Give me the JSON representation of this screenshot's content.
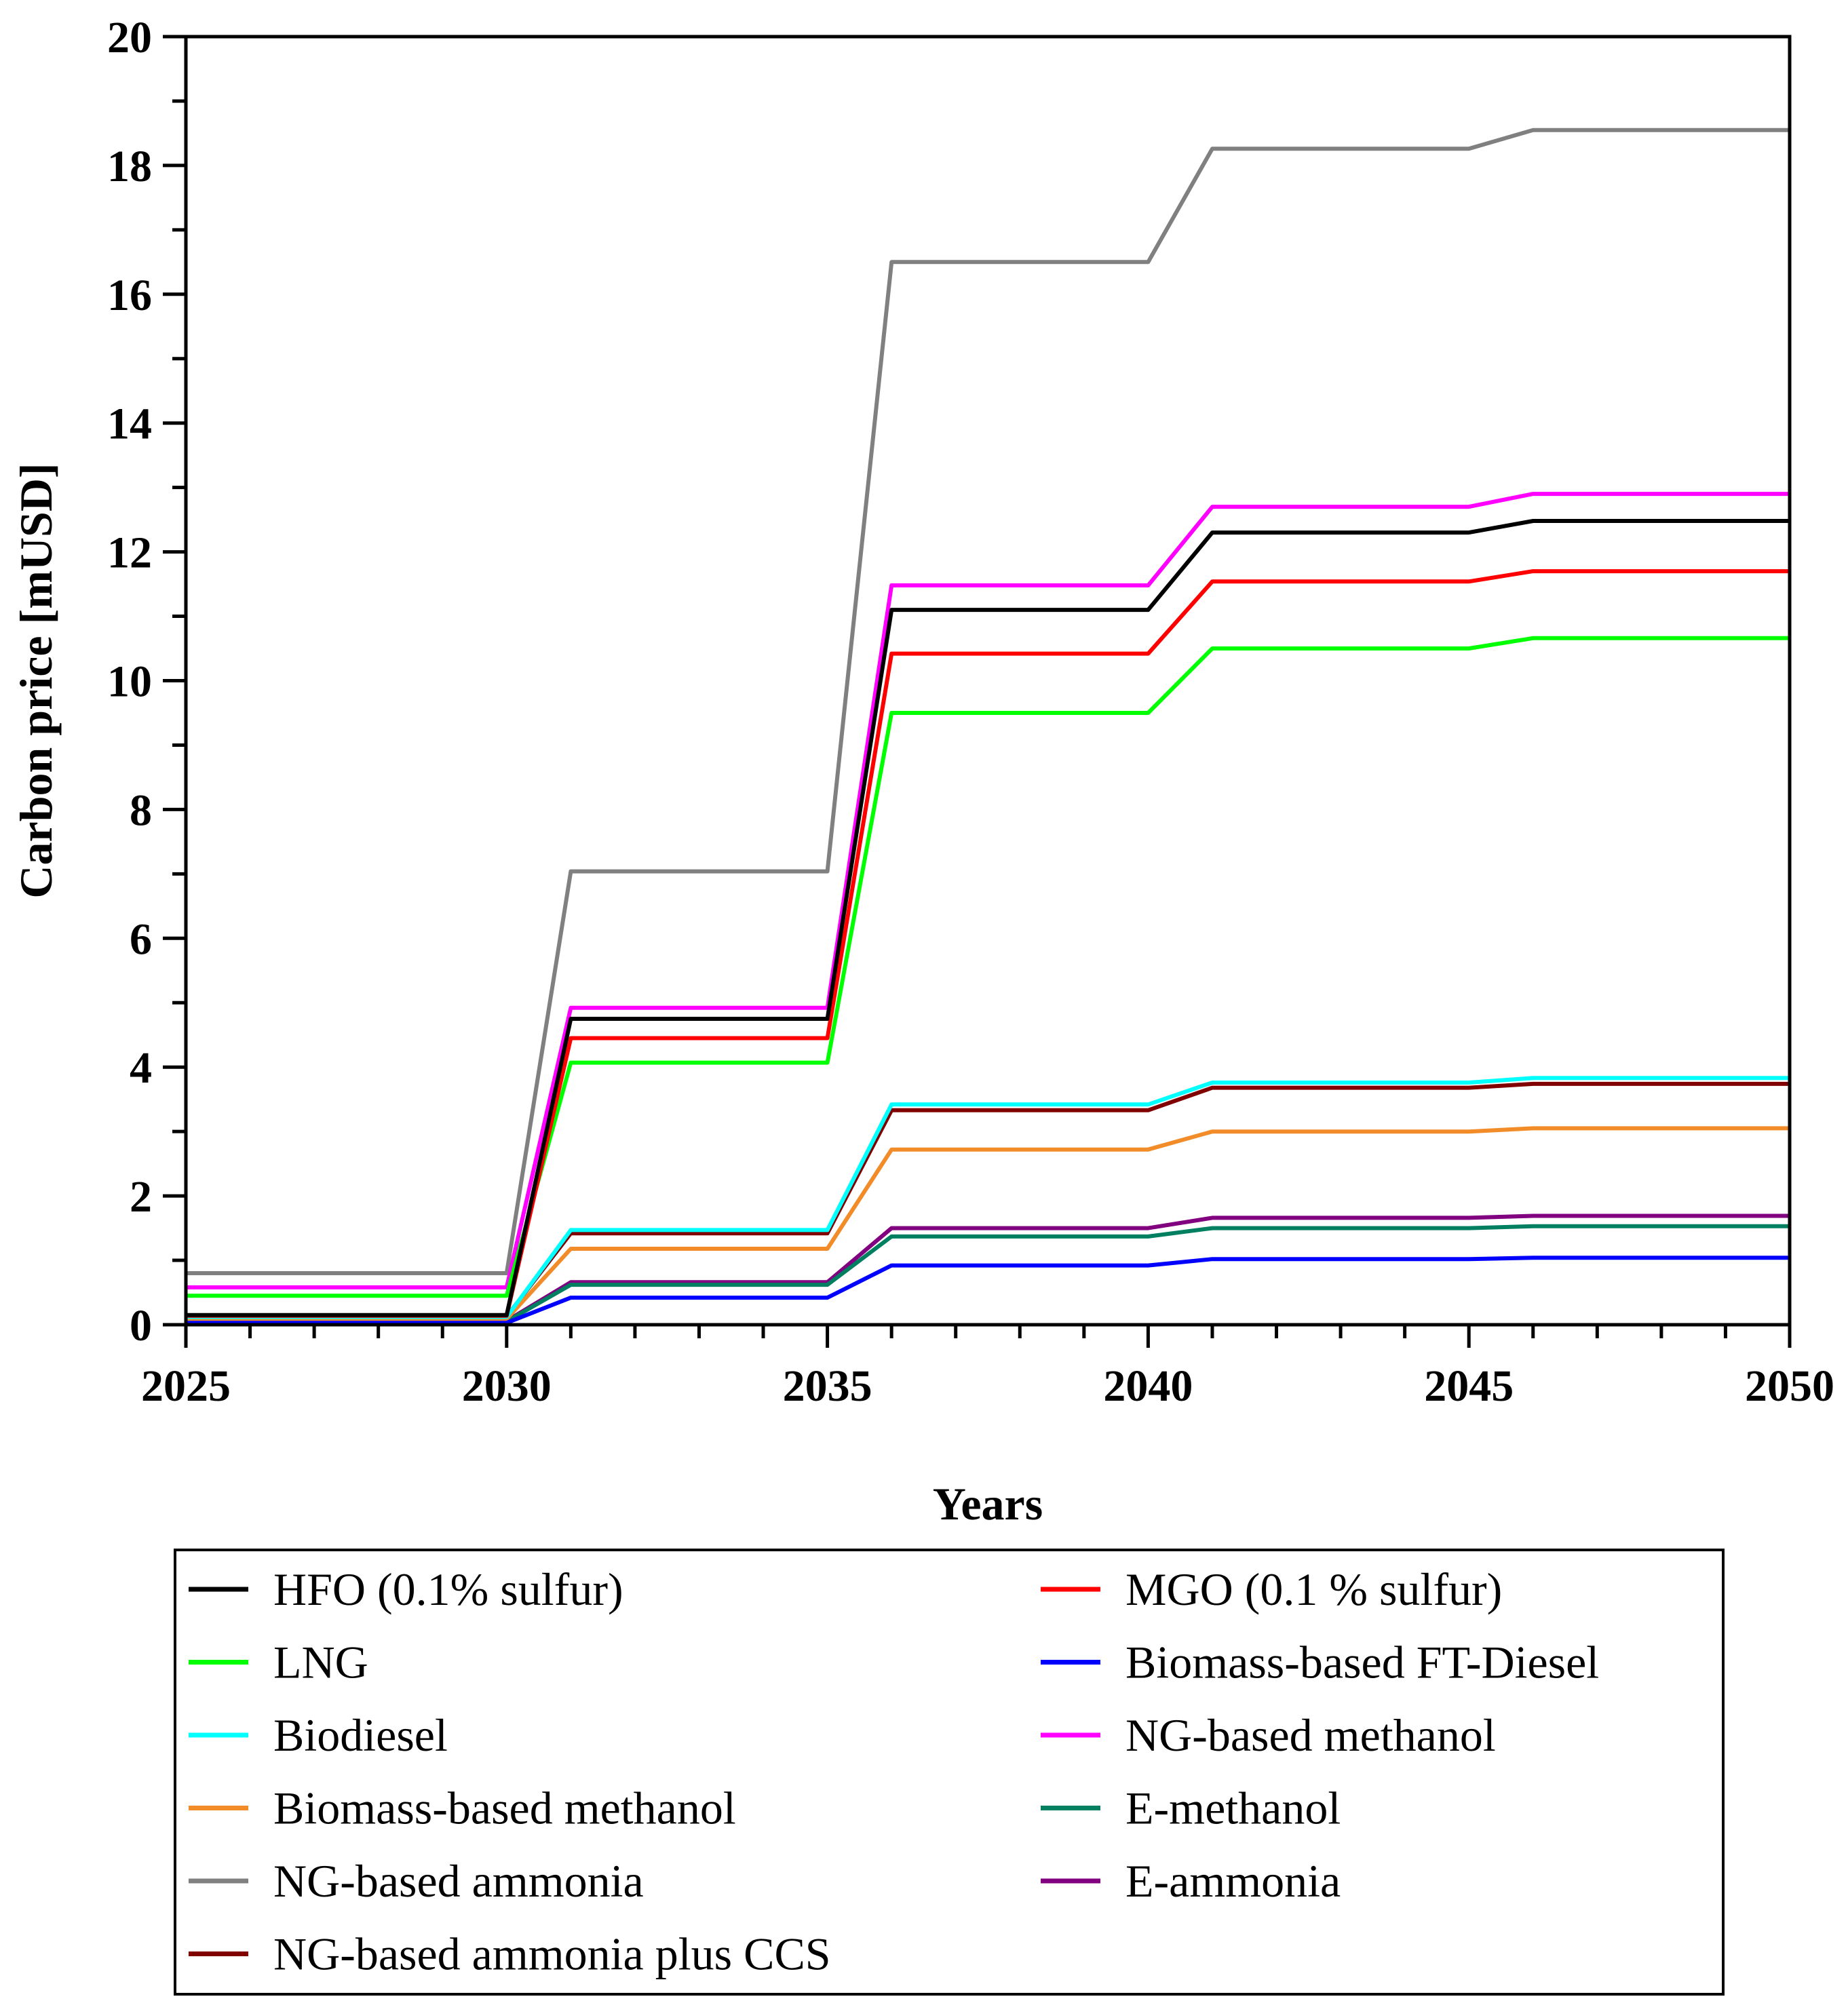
{
  "chart_data": {
    "type": "line",
    "title": "",
    "xlabel": "Years",
    "ylabel": "Carbon price [mUSD]",
    "xlim": [
      2025,
      2050
    ],
    "ylim": [
      0,
      20
    ],
    "x_ticks": [
      2025,
      2030,
      2035,
      2040,
      2045,
      2050
    ],
    "y_ticks": [
      0,
      2,
      4,
      6,
      8,
      10,
      12,
      14,
      16,
      18,
      20
    ],
    "grid": false,
    "legend_position": "bottom",
    "x": [
      2025,
      2030,
      2031,
      2035,
      2036,
      2040,
      2041,
      2045,
      2046,
      2050
    ],
    "series": [
      {
        "name": "HFO (0.1% sulfur)",
        "color": "#000000",
        "values": [
          0.15,
          0.15,
          4.75,
          4.75,
          11.1,
          11.1,
          12.3,
          12.3,
          12.48,
          12.48
        ]
      },
      {
        "name": "MGO (0.1 % sulfur)",
        "color": "#ff0000",
        "values": [
          0.14,
          0.14,
          4.45,
          4.45,
          10.42,
          10.42,
          11.54,
          11.54,
          11.7,
          11.7
        ]
      },
      {
        "name": "LNG",
        "color": "#00ff00",
        "values": [
          0.45,
          0.45,
          4.07,
          4.07,
          9.5,
          9.5,
          10.5,
          10.5,
          10.66,
          10.66
        ]
      },
      {
        "name": "Biomass-based FT-Diesel",
        "color": "#0000ff",
        "values": [
          0.03,
          0.03,
          0.42,
          0.42,
          0.92,
          0.92,
          1.02,
          1.02,
          1.04,
          1.04
        ]
      },
      {
        "name": "Biodiesel",
        "color": "#00ffff",
        "values": [
          0.12,
          0.12,
          1.47,
          1.47,
          3.42,
          3.42,
          3.76,
          3.76,
          3.83,
          3.83
        ]
      },
      {
        "name": "NG-based methanol",
        "color": "#ff00ff",
        "values": [
          0.58,
          0.58,
          4.92,
          4.92,
          11.48,
          11.48,
          12.7,
          12.7,
          12.9,
          12.9
        ]
      },
      {
        "name": "Biomass-based methanol",
        "color": "#f28c28",
        "values": [
          0.09,
          0.09,
          1.18,
          1.18,
          2.72,
          2.72,
          3.0,
          3.0,
          3.05,
          3.05
        ]
      },
      {
        "name": "E-methanol",
        "color": "#008060",
        "values": [
          0.05,
          0.05,
          0.62,
          0.62,
          1.37,
          1.37,
          1.5,
          1.5,
          1.53,
          1.53
        ]
      },
      {
        "name": "NG-based ammonia",
        "color": "#808080",
        "values": [
          0.8,
          0.8,
          7.04,
          7.04,
          16.5,
          16.5,
          18.26,
          18.26,
          18.55,
          18.55
        ]
      },
      {
        "name": "E-ammonia",
        "color": "#800080",
        "values": [
          0.06,
          0.06,
          0.66,
          0.66,
          1.5,
          1.5,
          1.66,
          1.66,
          1.69,
          1.69
        ]
      },
      {
        "name": "NG-based ammonia plus CCS",
        "color": "#800000",
        "values": [
          0.13,
          0.13,
          1.42,
          1.42,
          3.33,
          3.33,
          3.68,
          3.68,
          3.74,
          3.74
        ]
      }
    ]
  }
}
